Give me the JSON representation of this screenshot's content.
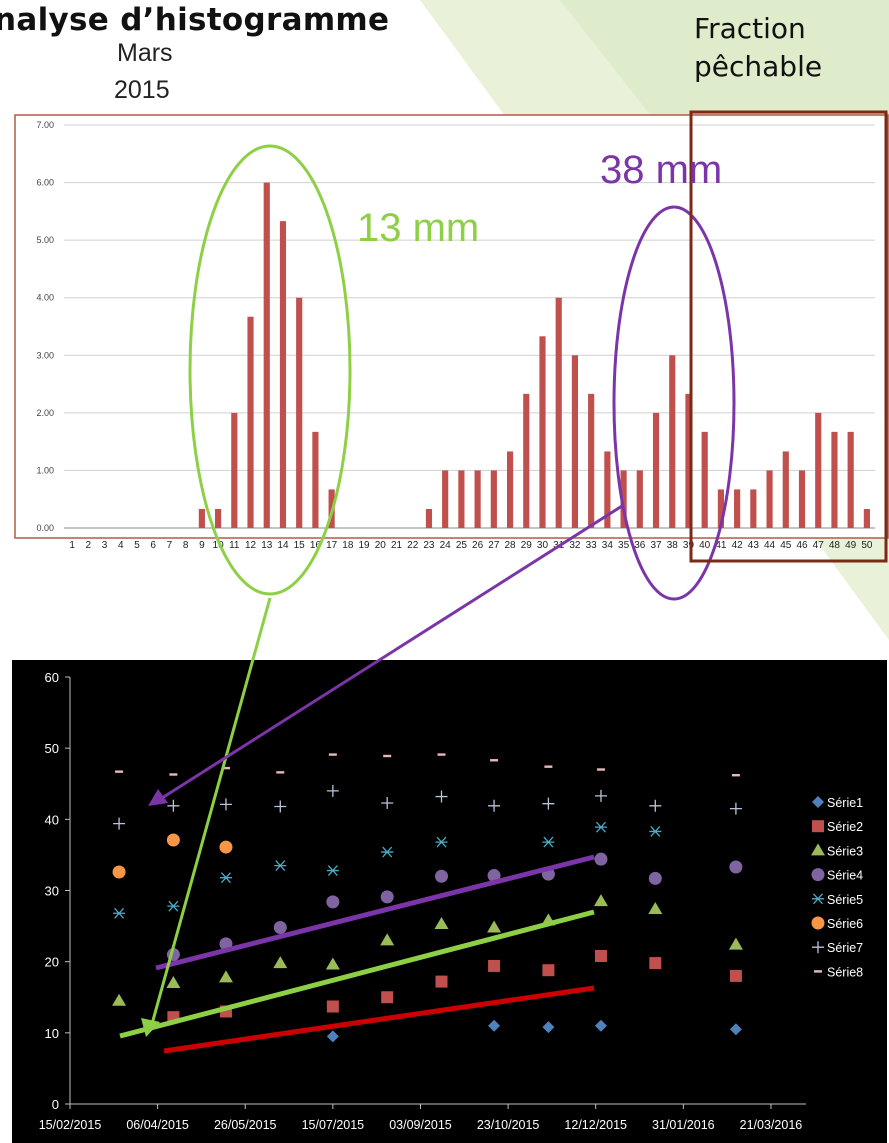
{
  "slide": {
    "title": "nalyse d’histogramme",
    "subtitle_month": "Mars",
    "subtitle_year": "2015",
    "fraction_line1": "Fraction",
    "fraction_line2": "pêchable"
  },
  "annotations": {
    "label_13": "13 mm",
    "label_38": "38 mm",
    "green": "#8ed045",
    "purple": "#7b35a8",
    "box": "#7a2a16",
    "red_trend": "#cc0000"
  },
  "chart_data": [
    {
      "type": "bar",
      "categories": [
        "1",
        "2",
        "3",
        "4",
        "5",
        "6",
        "7",
        "8",
        "9",
        "10",
        "11",
        "12",
        "13",
        "14",
        "15",
        "16",
        "17",
        "18",
        "19",
        "20",
        "21",
        "22",
        "23",
        "24",
        "25",
        "26",
        "27",
        "28",
        "29",
        "30",
        "31",
        "32",
        "33",
        "34",
        "35",
        "36",
        "37",
        "38",
        "39",
        "40",
        "41",
        "42",
        "43",
        "44",
        "45",
        "46",
        "47",
        "48",
        "49",
        "50"
      ],
      "values": [
        0,
        0,
        0,
        0,
        0,
        0,
        0,
        0,
        0.33,
        0.33,
        2,
        3.67,
        6,
        5.33,
        4,
        1.67,
        0.67,
        0,
        0,
        0,
        0,
        0,
        0.33,
        1,
        1,
        1,
        1,
        1.33,
        2.33,
        3.33,
        4,
        3,
        2.33,
        1.33,
        1,
        1,
        2,
        3,
        2.33,
        1.67,
        0.67,
        0.67,
        0.67,
        1,
        1.33,
        1,
        2,
        1.67,
        1.67,
        0.33
      ],
      "ylim": [
        0,
        7
      ],
      "yticks": [
        "0.00",
        "1.00",
        "2.00",
        "3.00",
        "4.00",
        "5.00",
        "6.00",
        "7.00"
      ],
      "bar_color": "#c0504d",
      "grid": true
    },
    {
      "type": "scatter",
      "xticks": [
        "15/02/2015",
        "06/04/2015",
        "26/05/2015",
        "15/07/2015",
        "03/09/2015",
        "23/10/2015",
        "12/12/2015",
        "31/01/2016",
        "21/03/2016"
      ],
      "xlim": [
        "2015-02-15",
        "2016-04-10"
      ],
      "ylim": [
        0,
        60
      ],
      "yticks": [
        "0",
        "10",
        "20",
        "30",
        "40",
        "50",
        "60"
      ],
      "background": "#000000",
      "series": [
        {
          "name": "Série1",
          "color": "#4f81bd",
          "marker": "diamond",
          "points": [
            [
              "2015-07-15",
              9.5
            ],
            [
              "2015-10-15",
              11
            ],
            [
              "2015-11-15",
              10.8
            ],
            [
              "2015-12-15",
              11
            ],
            [
              "2016-03-01",
              10.5
            ]
          ]
        },
        {
          "name": "Série2",
          "color": "#c0504d",
          "marker": "square",
          "points": [
            [
              "2015-04-15",
              12.2
            ],
            [
              "2015-05-15",
              13
            ],
            [
              "2015-07-15",
              13.7
            ],
            [
              "2015-08-15",
              15
            ],
            [
              "2015-09-15",
              17.2
            ],
            [
              "2015-10-15",
              19.4
            ],
            [
              "2015-11-15",
              18.8
            ],
            [
              "2015-12-15",
              20.8
            ],
            [
              "2016-01-15",
              19.8
            ],
            [
              "2016-03-01",
              18
            ]
          ]
        },
        {
          "name": "Série3",
          "color": "#9bbb59",
          "marker": "triangle",
          "points": [
            [
              "2015-03-15",
              14.5
            ],
            [
              "2015-04-15",
              17
            ],
            [
              "2015-05-15",
              17.8
            ],
            [
              "2015-06-15",
              19.8
            ],
            [
              "2015-07-15",
              19.6
            ],
            [
              "2015-08-15",
              23
            ],
            [
              "2015-09-15",
              25.3
            ],
            [
              "2015-10-15",
              24.8
            ],
            [
              "2015-11-15",
              25.8
            ],
            [
              "2015-12-15",
              28.5
            ],
            [
              "2016-01-15",
              27.4
            ],
            [
              "2016-03-01",
              22.4
            ]
          ]
        },
        {
          "name": "Série4",
          "color": "#8064a2",
          "marker": "circle",
          "points": [
            [
              "2015-04-15",
              21
            ],
            [
              "2015-05-15",
              22.5
            ],
            [
              "2015-06-15",
              24.8
            ],
            [
              "2015-07-15",
              28.4
            ],
            [
              "2015-08-15",
              29.1
            ],
            [
              "2015-09-15",
              32
            ],
            [
              "2015-10-15",
              32.1
            ],
            [
              "2015-11-15",
              32.3
            ],
            [
              "2015-12-15",
              34.4
            ],
            [
              "2016-01-15",
              31.7
            ],
            [
              "2016-03-01",
              33.3
            ]
          ]
        },
        {
          "name": "Série5",
          "color": "#4bacc6",
          "marker": "star",
          "points": [
            [
              "2015-03-15",
              26.8
            ],
            [
              "2015-04-15",
              27.8
            ],
            [
              "2015-05-15",
              31.8
            ],
            [
              "2015-06-15",
              33.5
            ],
            [
              "2015-07-15",
              32.8
            ],
            [
              "2015-08-15",
              35.4
            ],
            [
              "2015-09-15",
              36.8
            ],
            [
              "2015-11-15",
              36.8
            ],
            [
              "2015-12-15",
              38.9
            ],
            [
              "2016-01-15",
              38.3
            ]
          ]
        },
        {
          "name": "Série6",
          "color": "#f79646",
          "marker": "circle",
          "points": [
            [
              "2015-03-15",
              32.6
            ],
            [
              "2015-04-15",
              37.1
            ],
            [
              "2015-05-15",
              36.1
            ]
          ]
        },
        {
          "name": "Série7",
          "color": "#b8c3dc",
          "marker": "plus",
          "points": [
            [
              "2015-03-15",
              39.4
            ],
            [
              "2015-04-15",
              41.9
            ],
            [
              "2015-05-15",
              42.1
            ],
            [
              "2015-06-15",
              41.8
            ],
            [
              "2015-07-15",
              44
            ],
            [
              "2015-08-15",
              42.3
            ],
            [
              "2015-09-15",
              43.2
            ],
            [
              "2015-10-15",
              41.9
            ],
            [
              "2015-11-15",
              42.2
            ],
            [
              "2015-12-15",
              43.3
            ],
            [
              "2016-01-15",
              41.9
            ],
            [
              "2016-03-01",
              41.5
            ]
          ]
        },
        {
          "name": "Série8",
          "color": "#e6b9b8",
          "marker": "dash",
          "points": [
            [
              "2015-03-15",
              46.7
            ],
            [
              "2015-04-15",
              46.3
            ],
            [
              "2015-05-15",
              47.2
            ],
            [
              "2015-06-15",
              46.6
            ],
            [
              "2015-07-15",
              49.1
            ],
            [
              "2015-08-15",
              48.9
            ],
            [
              "2015-09-15",
              49.1
            ],
            [
              "2015-10-15",
              48.3
            ],
            [
              "2015-11-15",
              47.4
            ],
            [
              "2015-12-15",
              47
            ],
            [
              "2016-03-01",
              46.2
            ]
          ]
        }
      ]
    }
  ]
}
